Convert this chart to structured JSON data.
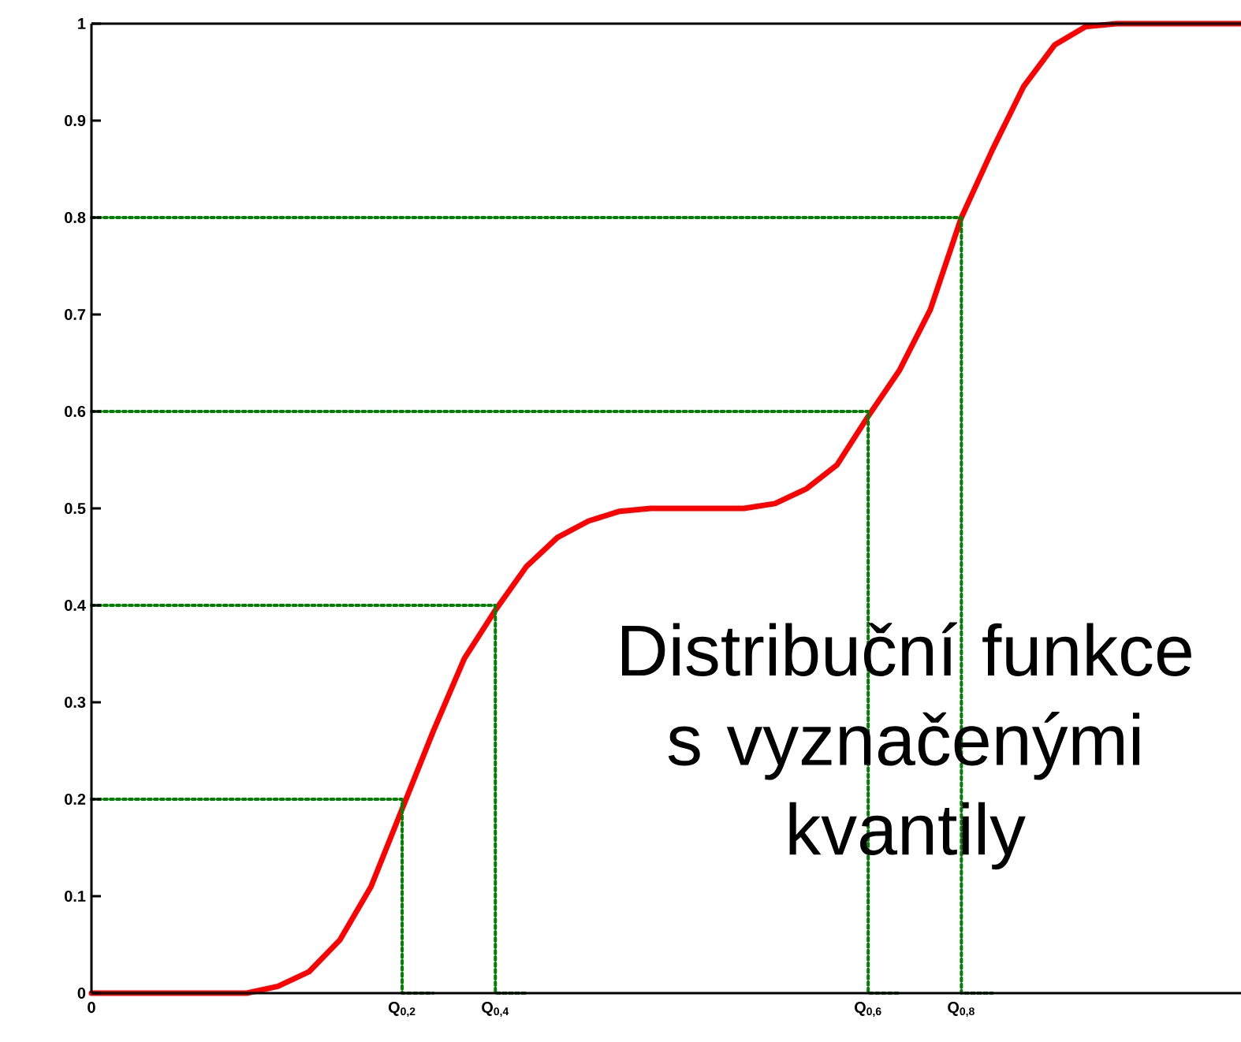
{
  "chart_data": {
    "type": "line",
    "marker": "none",
    "categories": [
      "0",
      null,
      null,
      null,
      null,
      null,
      null,
      null,
      null,
      null,
      "Q$_{0,2}$",
      null,
      null,
      "Q$_{0,4}$",
      null,
      null,
      null,
      null,
      null,
      null,
      null,
      null,
      null,
      null,
      null,
      "Q$_{0,6}$",
      null,
      null,
      "Q$_{0,8}$",
      null,
      null,
      null,
      null,
      null,
      null,
      null,
      null,
      null
    ],
    "ylim": [
      0,
      1
    ],
    "yticks": [
      {
        "value": 0,
        "label": "0"
      },
      {
        "value": 0.1,
        "label": "0.1"
      },
      {
        "value": 0.2,
        "label": "0.2"
      },
      {
        "value": 0.3,
        "label": "0.3"
      },
      {
        "value": 0.4,
        "label": "0.4"
      },
      {
        "value": 0.5,
        "label": "0.5"
      },
      {
        "value": 0.6,
        "label": "0.6"
      },
      {
        "value": 0.7,
        "label": "0.7"
      },
      {
        "value": 0.8,
        "label": "0.8"
      },
      {
        "value": 0.9,
        "label": "0.9"
      },
      {
        "value": 1,
        "label": "1"
      }
    ],
    "series": [
      {
        "color": "#ff0000",
        "line_style": "solid",
        "values": [
          0,
          0,
          0,
          0,
          0,
          0,
          0.007,
          0.022,
          0.055,
          0.11,
          0.19,
          0.27,
          0.345,
          0.395,
          0.44,
          0.47,
          0.487,
          0.497,
          0.5,
          0.5,
          0.5,
          0.5,
          0.505,
          0.52,
          0.545,
          0.595,
          0.642,
          0.705,
          0.8,
          0.87,
          0.935,
          0.978,
          0.997,
          1,
          1,
          1,
          1,
          1
        ]
      },
      {
        "type": "step",
        "color": "#008000",
        "line_style": "dotted",
        "values": [
          0.2,
          0.2,
          0.2,
          0.2,
          0.2,
          0.2,
          0.2,
          0.2,
          0.2,
          0.2,
          0.2,
          0,
          null,
          null,
          null,
          null,
          null,
          null,
          null,
          null,
          null,
          null,
          null,
          null,
          null,
          null,
          null,
          null,
          null,
          null,
          null,
          null,
          null,
          null,
          null,
          null,
          null,
          null
        ]
      },
      {
        "type": "step",
        "color": "#008001",
        "line_style": "dotted",
        "values": [
          0.4,
          0.4,
          0.4,
          0.4,
          0.4,
          0.4,
          0.4,
          0.4,
          0.4,
          0.4,
          0.4,
          0.4,
          0.4,
          0.4,
          0,
          null,
          null,
          null,
          null,
          null,
          null,
          null,
          null,
          null,
          null,
          null,
          null,
          null,
          null,
          null,
          null,
          null,
          null,
          null,
          null,
          null,
          null,
          null
        ]
      },
      {
        "type": "step",
        "color": "#008002",
        "line_style": "dotted",
        "values": [
          0.6,
          0.6,
          0.6,
          0.6,
          0.6,
          0.6,
          0.6,
          0.6,
          0.6,
          0.6,
          0.6,
          0.6,
          0.6,
          0.6,
          0.6,
          0.6,
          0.6,
          0.6,
          0.6,
          0.6,
          0.6,
          0.6,
          0.6,
          0.6,
          0.6,
          0.6,
          0,
          null,
          null,
          null,
          null,
          null,
          null,
          null,
          null,
          null,
          null,
          null
        ]
      },
      {
        "type": "step",
        "color": "#008003",
        "line_style": "dotted",
        "values": [
          0.8,
          0.8,
          0.8,
          0.8,
          0.8,
          0.8,
          0.8,
          0.8,
          0.8,
          0.8,
          0.8,
          0.8,
          0.8,
          0.8,
          0.8,
          0.8,
          0.8,
          0.8,
          0.8,
          0.8,
          0.8,
          0.8,
          0.8,
          0.8,
          0.8,
          0.8,
          0.8,
          0.8,
          0.8,
          0,
          null,
          null,
          null,
          null,
          null,
          null,
          null,
          null
        ]
      }
    ],
    "annotations": [
      "Distribuční funkce s vyznačenými kvantily"
    ]
  }
}
